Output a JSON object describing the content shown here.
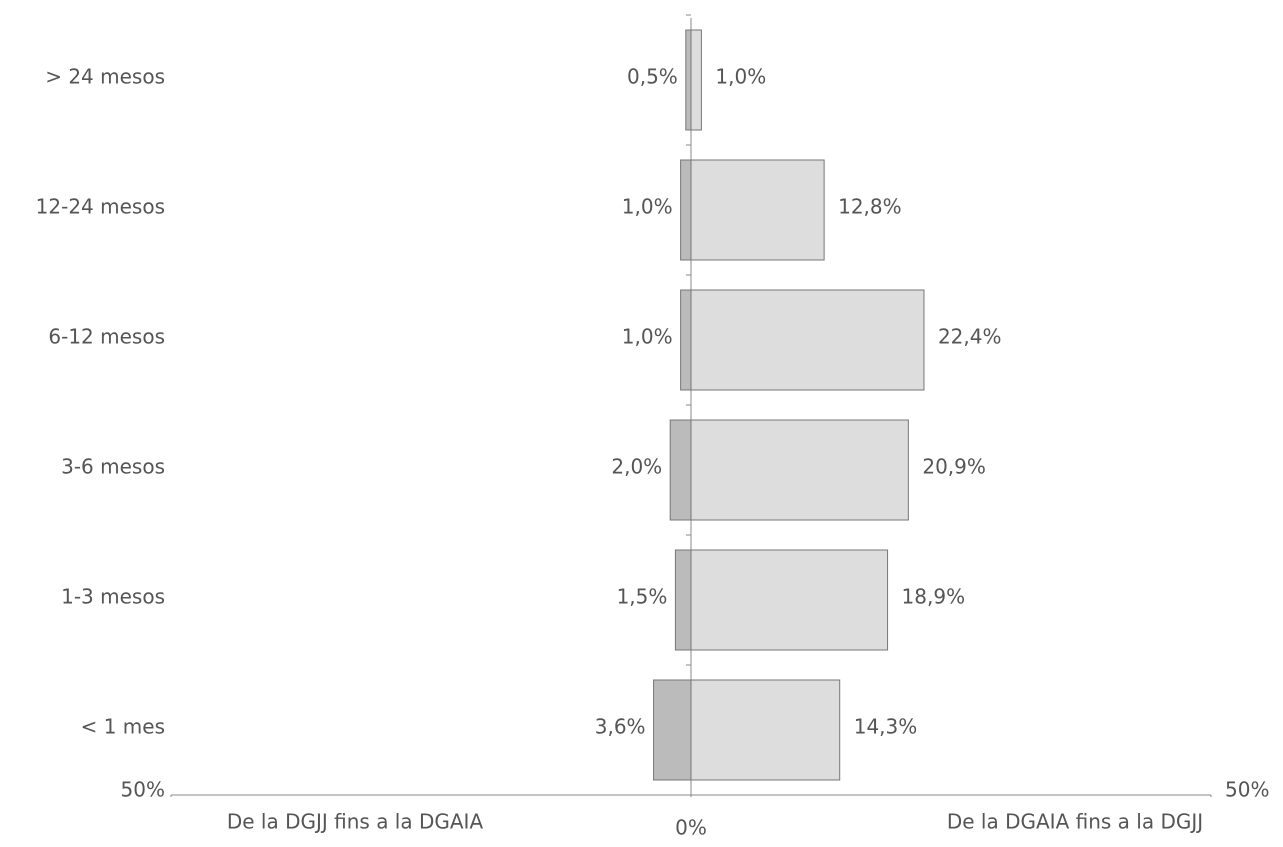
{
  "chart_data": {
    "type": "butterfly",
    "categories": [
      "> 24 mesos",
      "12-24 mesos",
      "6-12 mesos",
      "3-6 mesos",
      "1-3 mesos",
      "< 1 mes"
    ],
    "series": [
      {
        "name": "De la DGJJ fins a la DGAIA",
        "color": "#bbbbbb",
        "values": [
          0.5,
          1.0,
          1.0,
          2.0,
          1.5,
          3.6
        ],
        "value_labels": [
          "0,5%",
          "1,0%",
          "1,0%",
          "2,0%",
          "1,5%",
          "3,6%"
        ]
      },
      {
        "name": "De la DGAIA fins a la DGJJ",
        "color": "#dddddd",
        "values": [
          1.0,
          12.8,
          22.4,
          20.9,
          18.9,
          14.3
        ],
        "value_labels": [
          "1,0%",
          "12,8%",
          "22,4%",
          "20,9%",
          "18,9%",
          "14,3%"
        ]
      }
    ],
    "xlim": [
      -50,
      50
    ],
    "xticks": [
      {
        "value": -50,
        "label": "50%"
      },
      {
        "value": 0,
        "label": "0%"
      },
      {
        "value": 50,
        "label": "50%"
      }
    ]
  }
}
